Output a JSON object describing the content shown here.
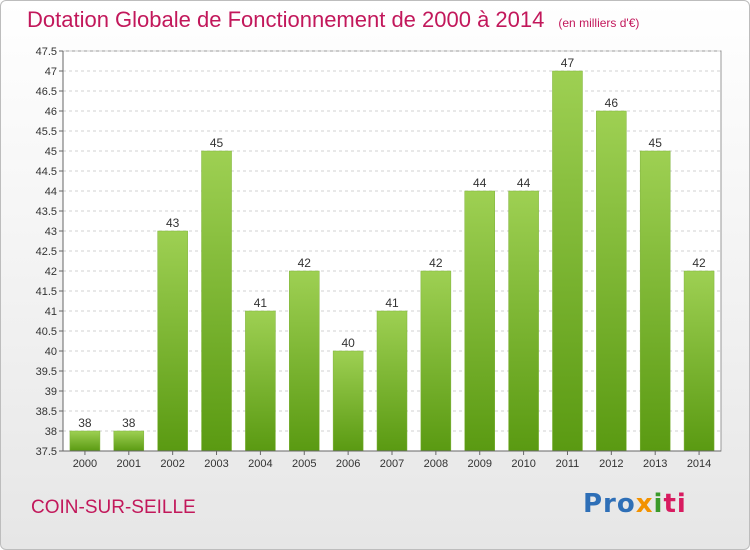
{
  "header": {
    "title": "Dotation Globale de Fonctionnement de 2000 à 2014",
    "unit": "(en milliers d'€)"
  },
  "footer": {
    "place": "COIN-SUR-SEILLE",
    "logo_parts": [
      "Pro",
      "x",
      "i",
      "ti"
    ]
  },
  "colors": {
    "title": "#c2185b",
    "bar_top": "#9ed053",
    "bar_bottom": "#5a9a12",
    "grid": "#d0d0d0"
  },
  "chart_data": {
    "type": "bar",
    "title": "Dotation Globale de Fonctionnement de 2000 à 2014",
    "subtitle": "(en milliers d'€)",
    "categories": [
      "2000",
      "2001",
      "2002",
      "2003",
      "2004",
      "2005",
      "2006",
      "2007",
      "2008",
      "2009",
      "2010",
      "2011",
      "2012",
      "2013",
      "2014"
    ],
    "values": [
      38,
      38,
      43,
      45,
      41,
      42,
      40,
      41,
      42,
      44,
      44,
      47,
      46,
      45,
      42
    ],
    "ylim": [
      37.5,
      47.5
    ],
    "ystep": 0.5,
    "yticks": [
      "37.5",
      "38",
      "38.5",
      "39",
      "39.5",
      "40",
      "40.5",
      "41",
      "41.5",
      "42",
      "42.5",
      "43",
      "43.5",
      "44",
      "44.5",
      "45",
      "45.5",
      "46",
      "46.5",
      "47",
      "47.5"
    ],
    "grid": true,
    "legend": "none"
  }
}
